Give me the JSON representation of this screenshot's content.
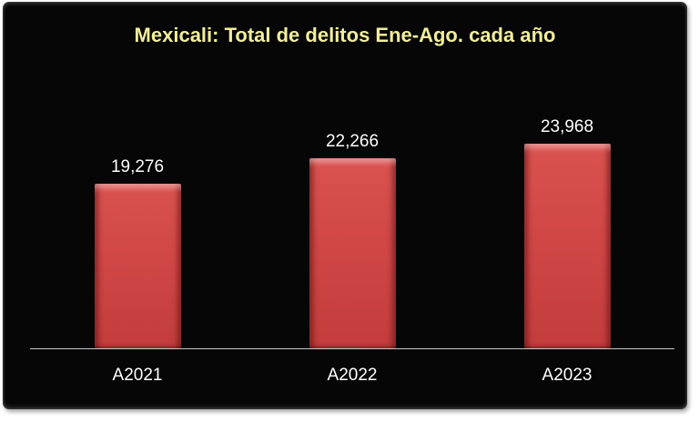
{
  "chart_data": {
    "type": "bar",
    "title": "Mexicali: Total de delitos Ene-Ago. cada año",
    "categories": [
      "A2021",
      "A2022",
      "A2023"
    ],
    "values": [
      19276,
      22266,
      23968
    ],
    "value_labels": [
      "19,276",
      "22,266",
      "23,968"
    ],
    "xlabel": "",
    "ylabel": "",
    "ylim": [
      0,
      24000
    ],
    "grid": false,
    "legend": false,
    "colors": {
      "panel_background": "#060606",
      "title": "#F1ED9B",
      "bar_fill": "#D04746",
      "bar_top_highlight": "#D95350",
      "bar_bottom_shade": "#C23D3C",
      "axis_line": "#C8C8C8",
      "labels": "#FFFFFF"
    }
  }
}
